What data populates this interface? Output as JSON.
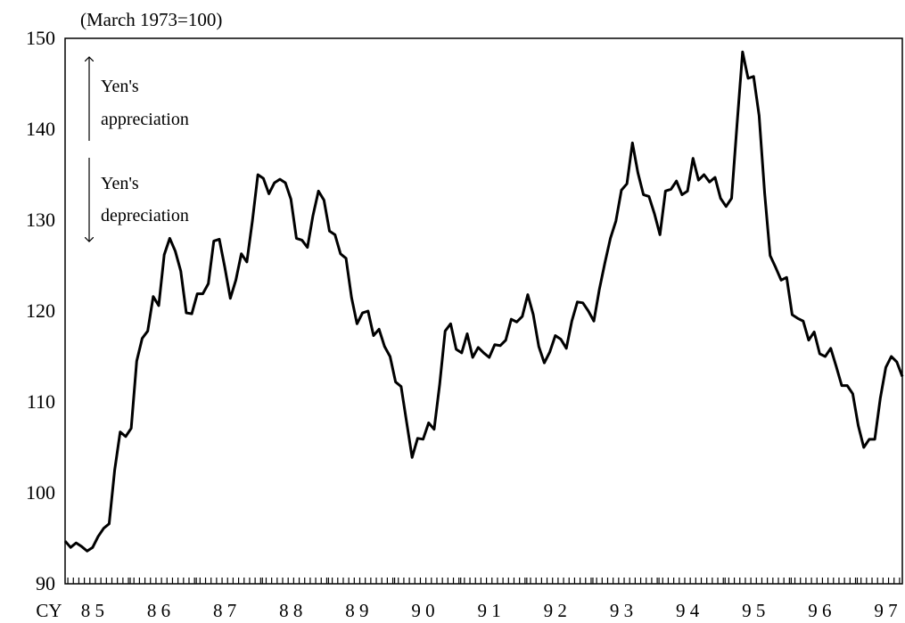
{
  "chart_data": {
    "type": "line",
    "subtitle": "(March 1973=100)",
    "x_label": "CY",
    "year_labels": [
      "8 5",
      "8 6",
      "8 7",
      "8 8",
      "8 9",
      "9 0",
      "9 1",
      "9 2",
      "9 3",
      "9 4",
      "9 5",
      "9 6",
      "9 7"
    ],
    "annotations": [
      [
        "Yen's",
        "appreciation"
      ],
      [
        "Yen's",
        "depreciation"
      ]
    ],
    "ylim": [
      90,
      150
    ],
    "yticks": [
      90,
      100,
      110,
      120,
      130,
      140,
      150
    ],
    "grid": false,
    "series": [
      {
        "color": "#000000",
        "values": [
          94.7,
          94.0,
          94.5,
          94.1,
          93.6,
          94.0,
          95.2,
          96.1,
          96.6,
          102.5,
          106.7,
          106.2,
          107.1,
          114.5,
          117.0,
          117.8,
          121.6,
          120.6,
          126.2,
          128.0,
          126.6,
          124.4,
          119.8,
          119.7,
          121.9,
          121.9,
          123.0,
          127.7,
          127.9,
          124.8,
          121.4,
          123.4,
          126.3,
          125.4,
          129.9,
          135.0,
          134.6,
          132.9,
          134.1,
          134.5,
          134.1,
          132.3,
          128.0,
          127.8,
          127.0,
          130.5,
          133.2,
          132.2,
          128.8,
          128.4,
          126.3,
          125.8,
          121.5,
          118.6,
          119.8,
          120.0,
          117.3,
          118.0,
          116.1,
          115.0,
          112.2,
          111.7,
          107.8,
          103.9,
          106.0,
          105.9,
          107.7,
          107.0,
          111.9,
          117.8,
          118.6,
          115.8,
          115.4,
          117.5,
          114.9,
          116.0,
          115.4,
          114.9,
          116.3,
          116.2,
          116.8,
          119.1,
          118.8,
          119.4,
          121.8,
          119.6,
          116.1,
          114.3,
          115.5,
          117.3,
          116.9,
          115.9,
          118.9,
          121.0,
          120.9,
          120.0,
          118.9,
          122.4,
          125.3,
          128.0,
          129.9,
          133.3,
          134.0,
          138.5,
          135.2,
          132.8,
          132.6,
          130.7,
          128.4,
          133.2,
          133.4,
          134.3,
          132.8,
          133.2,
          136.8,
          134.4,
          135.0,
          134.2,
          134.7,
          132.4,
          131.5,
          132.4,
          140.6,
          148.5,
          145.6,
          145.8,
          141.5,
          133.0,
          126.1,
          124.8,
          123.4,
          123.7,
          119.6,
          119.2,
          118.9,
          116.8,
          117.7,
          115.3,
          115.0,
          115.9,
          113.9,
          111.8,
          111.8,
          110.9,
          107.4,
          105.0,
          105.9,
          105.9,
          110.4,
          113.8,
          115.0,
          114.4,
          112.8
        ]
      }
    ]
  }
}
